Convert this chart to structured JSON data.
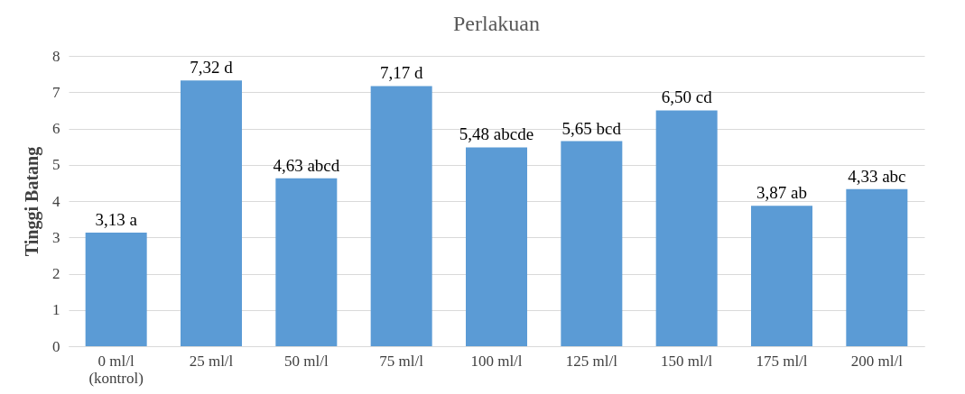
{
  "chart_data": {
    "type": "bar",
    "title": "Perlakuan",
    "ylabel": "Tinggi Batang",
    "categories": [
      "0 ml/l\n(kontrol)",
      "25 ml/l",
      "50 ml/l",
      "75 ml/l",
      "100 ml/l",
      "125 ml/l",
      "150 ml/l",
      "175 ml/l",
      "200 ml/l"
    ],
    "values": [
      3.13,
      7.32,
      4.63,
      7.17,
      5.48,
      5.65,
      6.5,
      3.87,
      4.33
    ],
    "value_labels": [
      "3,13 a",
      "7,32 d",
      "4,63 abcd",
      "7,17 d",
      "5,48 abcde",
      "5,65 bcd",
      "6,50 cd",
      "3,87 ab",
      "4,33 abc"
    ],
    "color": "#5b9bd5",
    "ylim": [
      0,
      8
    ],
    "yticks": [
      0,
      1,
      2,
      3,
      4,
      5,
      6,
      7,
      8
    ],
    "grid": "y"
  }
}
